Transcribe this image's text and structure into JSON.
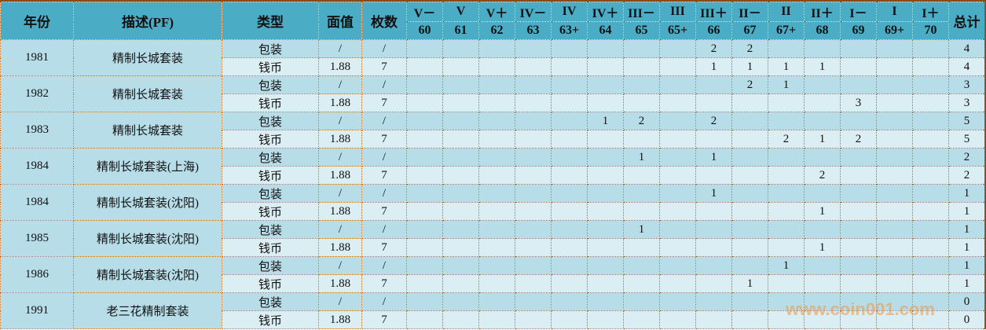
{
  "headers": {
    "year": "年份",
    "desc": "描述(PF)",
    "type": "类型",
    "face": "面值",
    "count": "枚数",
    "total": "总计"
  },
  "grades": [
    {
      "top": "V－",
      "bottom": "60"
    },
    {
      "top": "V",
      "bottom": "61"
    },
    {
      "top": "V＋",
      "bottom": "62"
    },
    {
      "top": "IV－",
      "bottom": "63"
    },
    {
      "top": "IV",
      "bottom": "63+"
    },
    {
      "top": "IV＋",
      "bottom": "64"
    },
    {
      "top": "III－",
      "bottom": "65"
    },
    {
      "top": "III",
      "bottom": "65+"
    },
    {
      "top": "III＋",
      "bottom": "66"
    },
    {
      "top": "II－",
      "bottom": "67"
    },
    {
      "top": "II",
      "bottom": "67+"
    },
    {
      "top": "II＋",
      "bottom": "68"
    },
    {
      "top": "I－",
      "bottom": "69"
    },
    {
      "top": "I",
      "bottom": "69+"
    },
    {
      "top": "I＋",
      "bottom": "70"
    }
  ],
  "groups": [
    {
      "year": "1981",
      "desc": "精制长城套装",
      "rows": [
        {
          "type": "包装",
          "face": "/",
          "count": "/",
          "cells": [
            "",
            "",
            "",
            "",
            "",
            "",
            "",
            "",
            "2",
            "2",
            "",
            "",
            "",
            "",
            ""
          ],
          "total": "4"
        },
        {
          "type": "钱币",
          "face": "1.88",
          "count": "7",
          "cells": [
            "",
            "",
            "",
            "",
            "",
            "",
            "",
            "",
            "1",
            "1",
            "1",
            "1",
            "",
            "",
            ""
          ],
          "total": "4"
        }
      ]
    },
    {
      "year": "1982",
      "desc": "精制长城套装",
      "rows": [
        {
          "type": "包装",
          "face": "/",
          "count": "/",
          "cells": [
            "",
            "",
            "",
            "",
            "",
            "",
            "",
            "",
            "",
            "2",
            "1",
            "",
            "",
            "",
            ""
          ],
          "total": "3"
        },
        {
          "type": "钱币",
          "face": "1.88",
          "count": "7",
          "cells": [
            "",
            "",
            "",
            "",
            "",
            "",
            "",
            "",
            "",
            "",
            "",
            "",
            "3",
            "",
            ""
          ],
          "total": "3"
        }
      ]
    },
    {
      "year": "1983",
      "desc": "精制长城套装",
      "rows": [
        {
          "type": "包装",
          "face": "/",
          "count": "/",
          "cells": [
            "",
            "",
            "",
            "",
            "",
            "1",
            "2",
            "",
            "2",
            "",
            "",
            "",
            "",
            "",
            ""
          ],
          "total": "5"
        },
        {
          "type": "钱币",
          "face": "1.88",
          "count": "7",
          "cells": [
            "",
            "",
            "",
            "",
            "",
            "",
            "",
            "",
            "",
            "",
            "2",
            "1",
            "2",
            "",
            ""
          ],
          "total": "5"
        }
      ]
    },
    {
      "year": "1984",
      "desc": "精制长城套装(上海)",
      "rows": [
        {
          "type": "包装",
          "face": "/",
          "count": "/",
          "cells": [
            "",
            "",
            "",
            "",
            "",
            "",
            "1",
            "",
            "1",
            "",
            "",
            "",
            "",
            "",
            ""
          ],
          "total": "2"
        },
        {
          "type": "钱币",
          "face": "1.88",
          "count": "7",
          "cells": [
            "",
            "",
            "",
            "",
            "",
            "",
            "",
            "",
            "",
            "",
            "",
            "2",
            "",
            "",
            ""
          ],
          "total": "2"
        }
      ]
    },
    {
      "year": "1984",
      "desc": "精制长城套装(沈阳)",
      "rows": [
        {
          "type": "包装",
          "face": "/",
          "count": "/",
          "cells": [
            "",
            "",
            "",
            "",
            "",
            "",
            "",
            "",
            "1",
            "",
            "",
            "",
            "",
            "",
            ""
          ],
          "total": "1"
        },
        {
          "type": "钱币",
          "face": "1.88",
          "count": "7",
          "cells": [
            "",
            "",
            "",
            "",
            "",
            "",
            "",
            "",
            "",
            "",
            "",
            "1",
            "",
            "",
            ""
          ],
          "total": "1"
        }
      ]
    },
    {
      "year": "1985",
      "desc": "精制长城套装(沈阳)",
      "rows": [
        {
          "type": "包装",
          "face": "/",
          "count": "/",
          "cells": [
            "",
            "",
            "",
            "",
            "",
            "",
            "1",
            "",
            "",
            "",
            "",
            "",
            "",
            "",
            ""
          ],
          "total": "1"
        },
        {
          "type": "钱币",
          "face": "1.88",
          "count": "7",
          "cells": [
            "",
            "",
            "",
            "",
            "",
            "",
            "",
            "",
            "",
            "",
            "",
            "1",
            "",
            "",
            ""
          ],
          "total": "1"
        }
      ]
    },
    {
      "year": "1986",
      "desc": "精制长城套装(沈阳)",
      "rows": [
        {
          "type": "包装",
          "face": "/",
          "count": "/",
          "cells": [
            "",
            "",
            "",
            "",
            "",
            "",
            "",
            "",
            "",
            "",
            "1",
            "",
            "",
            "",
            ""
          ],
          "total": "1"
        },
        {
          "type": "钱币",
          "face": "1.88",
          "count": "7",
          "cells": [
            "",
            "",
            "",
            "",
            "",
            "",
            "",
            "",
            "",
            "1",
            "",
            "",
            "",
            "",
            ""
          ],
          "total": "1"
        }
      ]
    },
    {
      "year": "1991",
      "desc": "老三花精制套装",
      "rows": [
        {
          "type": "包装",
          "face": "/",
          "count": "/",
          "cells": [
            "",
            "",
            "",
            "",
            "",
            "",
            "",
            "",
            "",
            "",
            "",
            "",
            "",
            "",
            ""
          ],
          "total": "0"
        },
        {
          "type": "钱币",
          "face": "1.88",
          "count": "7",
          "cells": [
            "",
            "",
            "",
            "",
            "",
            "",
            "",
            "",
            "",
            "",
            "",
            "",
            "",
            "",
            ""
          ],
          "total": "0"
        }
      ]
    }
  ],
  "watermark": "www.coin001.com",
  "colors": {
    "header": "#4bacc6",
    "row_dark": "#b7dde8",
    "row_light": "#daeef3",
    "border": "#c0600a"
  }
}
